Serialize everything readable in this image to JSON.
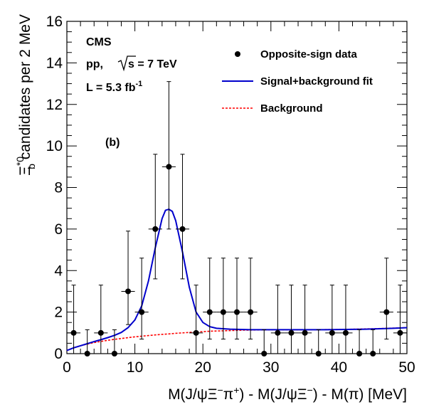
{
  "chart_data": {
    "type": "scatter",
    "xlabel_parts": [
      "M(J/ψΞ",
      "−",
      "π",
      "+",
      ") - M(J/ψΞ",
      "−",
      ") - M(π) [MeV]"
    ],
    "ylabel_parts": [
      "Ξ",
      "*0",
      "b",
      " candidates per 2 MeV"
    ],
    "xlim": [
      0,
      50
    ],
    "ylim": [
      0,
      16
    ],
    "x_ticks": [
      0,
      10,
      20,
      30,
      40,
      50
    ],
    "y_ticks": [
      0,
      2,
      4,
      6,
      8,
      10,
      12,
      14,
      16
    ],
    "annotations": {
      "experiment": "CMS",
      "energy_prefix": "pp,",
      "energy_suffix": "s = 7 TeV",
      "lumi": "L = 5.3 fb",
      "lumi_exp": "-1",
      "panel": "(b)"
    },
    "legend": {
      "position": "top-right",
      "entries": [
        {
          "label": "Opposite-sign data",
          "style": "marker",
          "color": "#000000"
        },
        {
          "label": "Signal+background fit",
          "style": "solid",
          "color": "#0000cc"
        },
        {
          "label": "Background",
          "style": "dashed",
          "color": "#ff0000"
        }
      ]
    },
    "series": [
      {
        "name": "Opposite-sign data",
        "color": "#000000",
        "x": [
          1,
          3,
          5,
          7,
          9,
          11,
          13,
          15,
          17,
          19,
          21,
          23,
          25,
          27,
          29,
          31,
          33,
          35,
          37,
          39,
          41,
          43,
          45,
          47,
          49
        ],
        "y": [
          1,
          0,
          1,
          0,
          3,
          2,
          6,
          9,
          6,
          1,
          2,
          2,
          2,
          2,
          0,
          1,
          1,
          1,
          0,
          1,
          1,
          0,
          0,
          2,
          1
        ],
        "err_up": [
          2.3,
          1.15,
          2.3,
          1.15,
          2.9,
          2.6,
          3.6,
          4.1,
          3.6,
          2.3,
          2.6,
          2.6,
          2.6,
          2.6,
          1.15,
          2.3,
          2.3,
          2.3,
          1.15,
          2.3,
          2.3,
          1.15,
          1.15,
          2.6,
          2.3
        ],
        "err_down": [
          1,
          0,
          1,
          0,
          1.6,
          1.3,
          2.4,
          3.0,
          2.4,
          1,
          1.3,
          1.3,
          1.3,
          1.3,
          0,
          1,
          1,
          1,
          0,
          1,
          1,
          0,
          0,
          1.3,
          1
        ],
        "x_err": 1
      },
      {
        "name": "Signal+background fit",
        "color": "#0000cc",
        "x": [
          0,
          1,
          2,
          3,
          4,
          5,
          6,
          7,
          8,
          9,
          10,
          11,
          12,
          13,
          14,
          14.5,
          15,
          15.5,
          16,
          17,
          18,
          19,
          20,
          21,
          22,
          23,
          24,
          25,
          26,
          27,
          28,
          29,
          30,
          32,
          35,
          38,
          40,
          42,
          44,
          46,
          48,
          50
        ],
        "y": [
          0.15,
          0.28,
          0.38,
          0.48,
          0.58,
          0.67,
          0.77,
          0.88,
          1.02,
          1.25,
          1.62,
          2.3,
          3.5,
          5.1,
          6.5,
          6.9,
          6.95,
          6.85,
          6.4,
          4.9,
          3.2,
          2.0,
          1.5,
          1.3,
          1.22,
          1.2,
          1.18,
          1.17,
          1.16,
          1.15,
          1.15,
          1.15,
          1.15,
          1.15,
          1.15,
          1.15,
          1.16,
          1.17,
          1.18,
          1.2,
          1.22,
          1.25
        ]
      },
      {
        "name": "Background",
        "color": "#ff0000",
        "x": [
          0,
          1,
          2,
          3,
          4,
          5,
          6,
          7,
          8,
          9,
          10,
          11,
          12,
          13,
          14,
          15,
          16,
          17,
          18,
          19,
          20,
          21,
          22,
          23,
          24,
          25,
          26,
          28,
          30,
          35,
          40,
          45,
          50
        ],
        "y": [
          0.15,
          0.28,
          0.38,
          0.46,
          0.53,
          0.59,
          0.64,
          0.69,
          0.73,
          0.77,
          0.81,
          0.84,
          0.87,
          0.9,
          0.93,
          0.95,
          0.98,
          1.0,
          1.02,
          1.04,
          1.06,
          1.08,
          1.09,
          1.1,
          1.11,
          1.12,
          1.13,
          1.14,
          1.15,
          1.15,
          1.16,
          1.2,
          1.25
        ]
      }
    ]
  }
}
